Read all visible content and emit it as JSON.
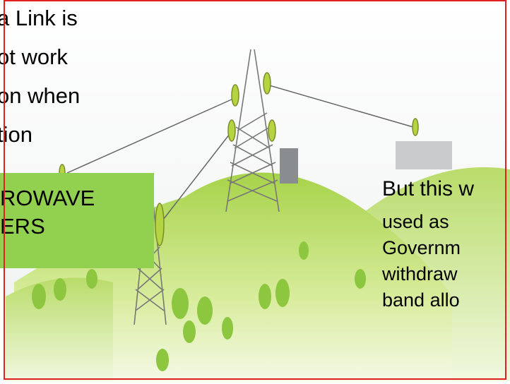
{
  "left_text": {
    "lines": [
      "a Link is",
      "ot work",
      "on when",
      "tion"
    ]
  },
  "label_box": {
    "lines": [
      "ROWAVE",
      "ERS"
    ]
  },
  "right_text": {
    "lines": [
      "But this w",
      "used as",
      "Governm",
      "withdraw",
      "band allo"
    ]
  }
}
